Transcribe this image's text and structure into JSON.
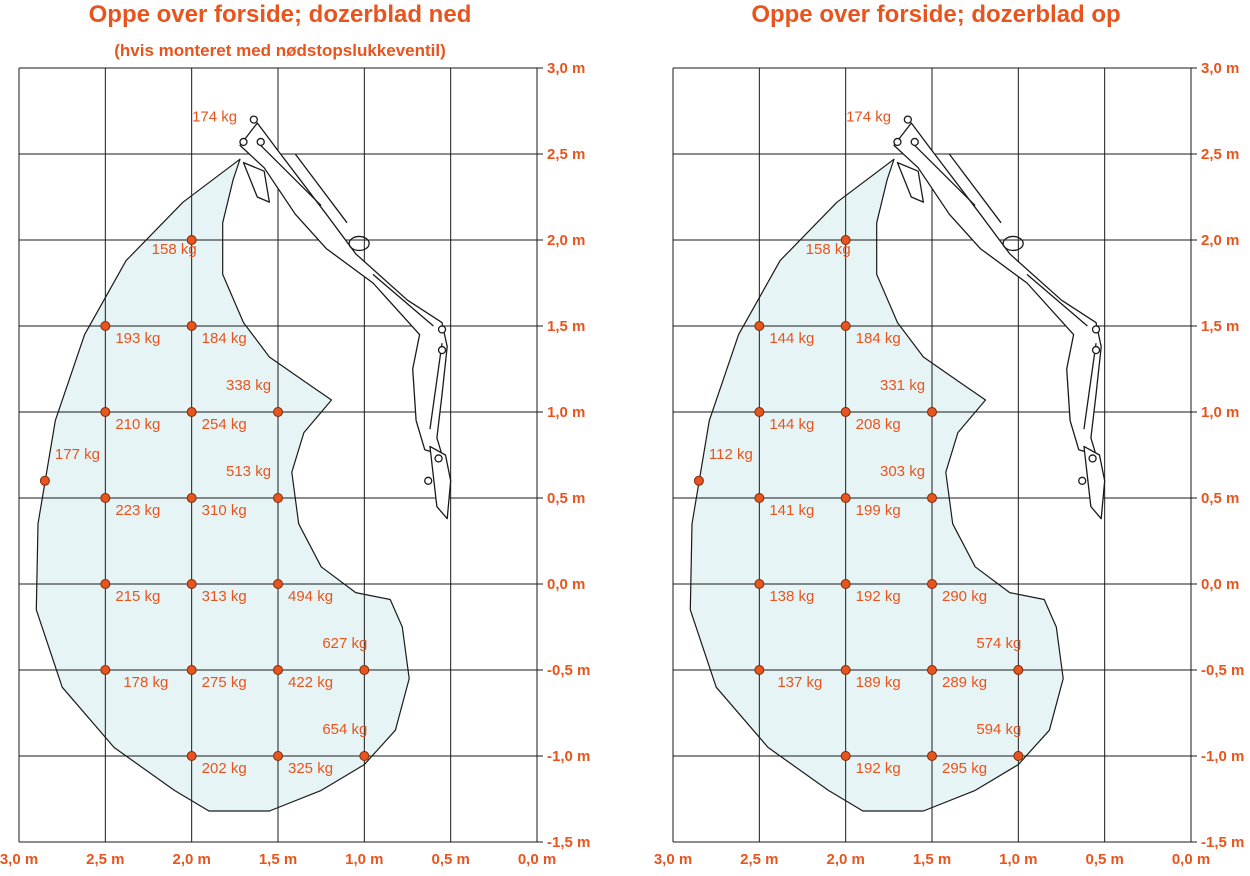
{
  "colors": {
    "accent": "#e8541d",
    "area_fill": "#e6f4f5",
    "grid": "#1a1a1a",
    "point_fill": "#e8541d",
    "point_stroke": "#7a2a0a"
  },
  "chart_data": [
    {
      "type": "scatter",
      "title": "Oppe over forside; dozerblad ned",
      "subtitle": "(hvis monteret med nødstopslukkeventil)",
      "x_ticks": [
        "3,0 m",
        "2,5 m",
        "2,0 m",
        "1,5 m",
        "1,0 m",
        "0,5 m",
        "0,0 m"
      ],
      "y_ticks": [
        "3,0 m",
        "2,5 m",
        "2,0 m",
        "1,5 m",
        "1,0 m",
        "0,5 m",
        "0,0 m",
        "-0,5 m",
        "-1,0 m",
        "-1,5 m"
      ],
      "xlim": [
        3.0,
        0.0
      ],
      "ylim": [
        -1.5,
        3.0
      ],
      "grid": true,
      "points": [
        {
          "x": 1.65,
          "y": 2.7,
          "label": "174 kg",
          "marker": false
        },
        {
          "x": 2.0,
          "y": 2.0,
          "label": "158 kg",
          "marker": true
        },
        {
          "x": 2.5,
          "y": 1.5,
          "label": "193 kg",
          "marker": true
        },
        {
          "x": 2.0,
          "y": 1.5,
          "label": "184 kg",
          "marker": true
        },
        {
          "x": 1.5,
          "y": 1.0,
          "label": "338 kg",
          "marker": true
        },
        {
          "x": 2.5,
          "y": 1.0,
          "label": "210 kg",
          "marker": true
        },
        {
          "x": 2.0,
          "y": 1.0,
          "label": "254 kg",
          "marker": true
        },
        {
          "x": 2.85,
          "y": 0.6,
          "label": "177 kg",
          "marker": true
        },
        {
          "x": 1.5,
          "y": 0.5,
          "label": "513 kg",
          "marker": true
        },
        {
          "x": 2.5,
          "y": 0.5,
          "label": "223 kg",
          "marker": true
        },
        {
          "x": 2.0,
          "y": 0.5,
          "label": "310 kg",
          "marker": true
        },
        {
          "x": 2.5,
          "y": 0.0,
          "label": "215 kg",
          "marker": true
        },
        {
          "x": 2.0,
          "y": 0.0,
          "label": "313 kg",
          "marker": true
        },
        {
          "x": 1.5,
          "y": 0.0,
          "label": "494 kg",
          "marker": true
        },
        {
          "x": 1.0,
          "y": -0.5,
          "label": "627 kg",
          "marker": true
        },
        {
          "x": 2.5,
          "y": -0.5,
          "label": "178 kg",
          "marker": true
        },
        {
          "x": 2.0,
          "y": -0.5,
          "label": "275 kg",
          "marker": true
        },
        {
          "x": 1.5,
          "y": -0.5,
          "label": "422 kg",
          "marker": true
        },
        {
          "x": 1.0,
          "y": -1.0,
          "label": "654 kg",
          "marker": true
        },
        {
          "x": 2.0,
          "y": -1.0,
          "label": "202 kg",
          "marker": true
        },
        {
          "x": 1.5,
          "y": -1.0,
          "label": "325 kg",
          "marker": true
        }
      ]
    },
    {
      "type": "scatter",
      "title": "Oppe over forside; dozerblad op",
      "subtitle": "",
      "x_ticks": [
        "3,0 m",
        "2,5 m",
        "2,0 m",
        "1,5 m",
        "1,0 m",
        "0,5 m",
        "0,0 m"
      ],
      "y_ticks": [
        "3,0 m",
        "2,5 m",
        "2,0 m",
        "1,5 m",
        "1,0 m",
        "0,5 m",
        "0,0 m",
        "-0,5 m",
        "-1,0 m",
        "-1,5 m"
      ],
      "xlim": [
        3.0,
        0.0
      ],
      "ylim": [
        -1.5,
        3.0
      ],
      "grid": true,
      "points": [
        {
          "x": 1.65,
          "y": 2.7,
          "label": "174 kg",
          "marker": false
        },
        {
          "x": 2.0,
          "y": 2.0,
          "label": "158 kg",
          "marker": true
        },
        {
          "x": 2.5,
          "y": 1.5,
          "label": "144 kg",
          "marker": true
        },
        {
          "x": 2.0,
          "y": 1.5,
          "label": "184 kg",
          "marker": true
        },
        {
          "x": 1.5,
          "y": 1.0,
          "label": "331 kg",
          "marker": true
        },
        {
          "x": 2.5,
          "y": 1.0,
          "label": "144 kg",
          "marker": true
        },
        {
          "x": 2.0,
          "y": 1.0,
          "label": "208 kg",
          "marker": true
        },
        {
          "x": 2.85,
          "y": 0.6,
          "label": "112 kg",
          "marker": true
        },
        {
          "x": 1.5,
          "y": 0.5,
          "label": "303 kg",
          "marker": true
        },
        {
          "x": 2.5,
          "y": 0.5,
          "label": "141 kg",
          "marker": true
        },
        {
          "x": 2.0,
          "y": 0.5,
          "label": "199 kg",
          "marker": true
        },
        {
          "x": 2.5,
          "y": 0.0,
          "label": "138 kg",
          "marker": true
        },
        {
          "x": 2.0,
          "y": 0.0,
          "label": "192 kg",
          "marker": true
        },
        {
          "x": 1.5,
          "y": 0.0,
          "label": "290 kg",
          "marker": true
        },
        {
          "x": 1.0,
          "y": -0.5,
          "label": "574 kg",
          "marker": true
        },
        {
          "x": 2.5,
          "y": -0.5,
          "label": "137 kg",
          "marker": true
        },
        {
          "x": 2.0,
          "y": -0.5,
          "label": "189 kg",
          "marker": true
        },
        {
          "x": 1.5,
          "y": -0.5,
          "label": "289 kg",
          "marker": true
        },
        {
          "x": 1.0,
          "y": -1.0,
          "label": "594 kg",
          "marker": true
        },
        {
          "x": 2.0,
          "y": -1.0,
          "label": "192 kg",
          "marker": true
        },
        {
          "x": 1.5,
          "y": -1.0,
          "label": "295 kg",
          "marker": true
        }
      ]
    }
  ]
}
